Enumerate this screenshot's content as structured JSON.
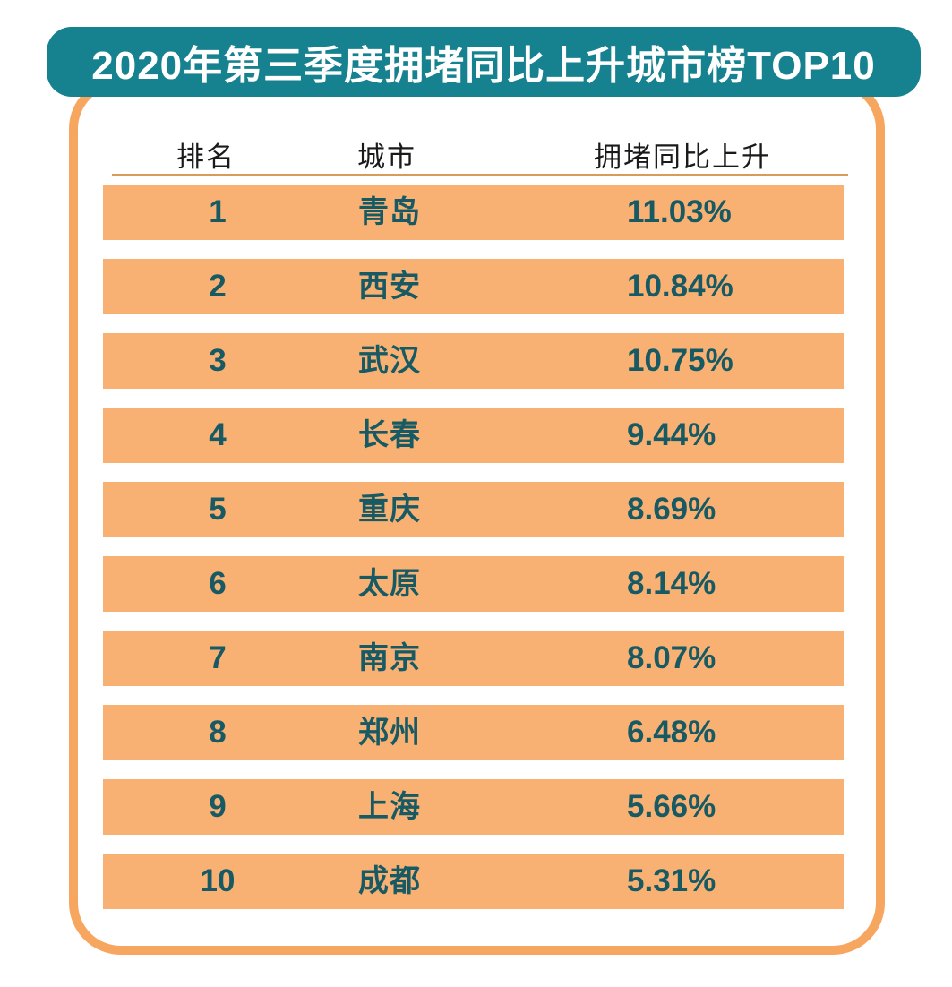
{
  "title": "2020年第三季度拥堵同比上升城市榜TOP10",
  "colors": {
    "banner_bg": "#16818F",
    "banner_text": "#FFFFFF",
    "card_border": "#F7A65F",
    "row_bg": "#F8B173",
    "row_text": "#175A64",
    "header_text": "#1A1A1A",
    "divider": "#D89C58"
  },
  "table": {
    "headers": {
      "rank": "排名",
      "city": "城市",
      "value": "拥堵同比上升"
    },
    "rows": [
      {
        "rank": "1",
        "city": "青岛",
        "value": "11.03%"
      },
      {
        "rank": "2",
        "city": "西安",
        "value": "10.84%"
      },
      {
        "rank": "3",
        "city": "武汉",
        "value": "10.75%"
      },
      {
        "rank": "4",
        "city": "长春",
        "value": "9.44%"
      },
      {
        "rank": "5",
        "city": "重庆",
        "value": "8.69%"
      },
      {
        "rank": "6",
        "city": "太原",
        "value": "8.14%"
      },
      {
        "rank": "7",
        "city": "南京",
        "value": "8.07%"
      },
      {
        "rank": "8",
        "city": "郑州",
        "value": "6.48%"
      },
      {
        "rank": "9",
        "city": "上海",
        "value": "5.66%"
      },
      {
        "rank": "10",
        "city": "成都",
        "value": "5.31%"
      }
    ]
  },
  "chart_data": {
    "type": "table",
    "title": "2020年第三季度拥堵同比上升城市榜TOP10",
    "columns": [
      "排名",
      "城市",
      "拥堵同比上升"
    ],
    "rows": [
      [
        "1",
        "青岛",
        "11.03%"
      ],
      [
        "2",
        "西安",
        "10.84%"
      ],
      [
        "3",
        "武汉",
        "10.75%"
      ],
      [
        "4",
        "长春",
        "9.44%"
      ],
      [
        "5",
        "重庆",
        "8.69%"
      ],
      [
        "6",
        "太原",
        "8.14%"
      ],
      [
        "7",
        "南京",
        "8.07%"
      ],
      [
        "8",
        "郑州",
        "6.48%"
      ],
      [
        "9",
        "上海",
        "5.66%"
      ],
      [
        "10",
        "成都",
        "5.31%"
      ]
    ],
    "values_numeric_pct": [
      11.03,
      10.84,
      10.75,
      9.44,
      8.69,
      8.14,
      8.07,
      6.48,
      5.66,
      5.31
    ]
  }
}
